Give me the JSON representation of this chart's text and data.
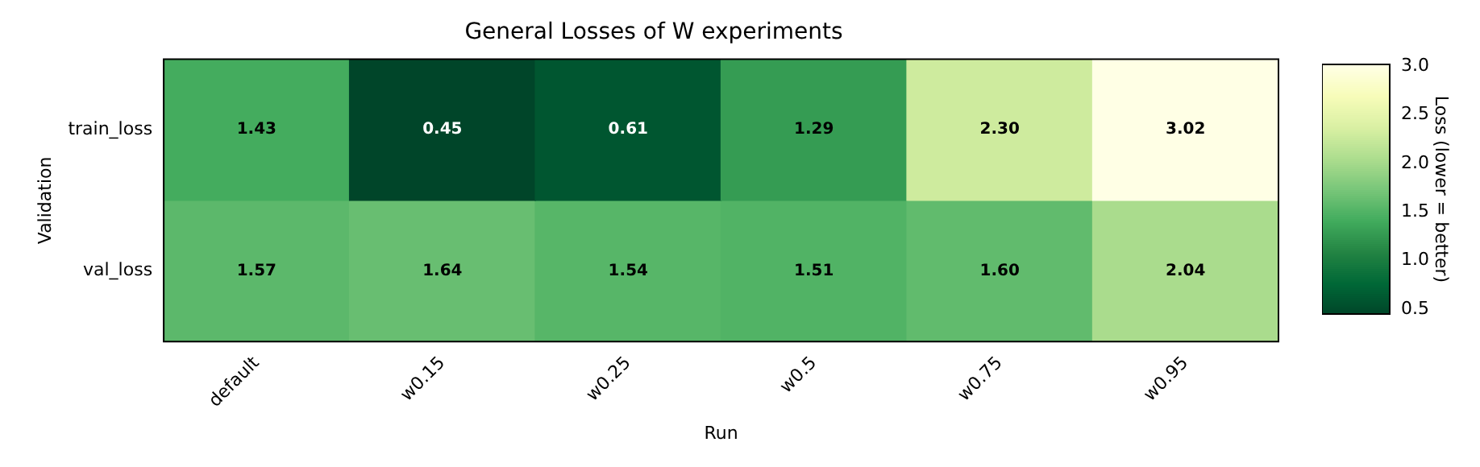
{
  "chart_data": {
    "type": "heatmap",
    "title": "General Losses of W experiments",
    "xlabel": "Run",
    "ylabel": "Validation",
    "clabel": "Loss (lower = better)",
    "categories": [
      "default",
      "w0.15",
      "w0.25",
      "w0.5",
      "w0.75",
      "w0.95"
    ],
    "y_categories": [
      "train_loss",
      "val_loss"
    ],
    "cells": [
      [
        1.43,
        0.45,
        0.61,
        1.29,
        2.3,
        3.02
      ],
      [
        1.57,
        1.64,
        1.54,
        1.51,
        1.6,
        2.04
      ]
    ],
    "cell_labels": [
      [
        "1.43",
        "0.45",
        "0.61",
        "1.29",
        "2.30",
        "3.02"
      ],
      [
        "1.57",
        "1.64",
        "1.54",
        "1.51",
        "1.60",
        "2.04"
      ]
    ],
    "clim": [
      0.45,
      3.02
    ],
    "cticks": [
      0.5,
      {
        "value": 1,
        "label": "1.0"
      },
      1.5,
      {
        "value": 2,
        "label": "2.0"
      },
      2.5,
      {
        "value": 3,
        "label": "3.0"
      }
    ]
  }
}
